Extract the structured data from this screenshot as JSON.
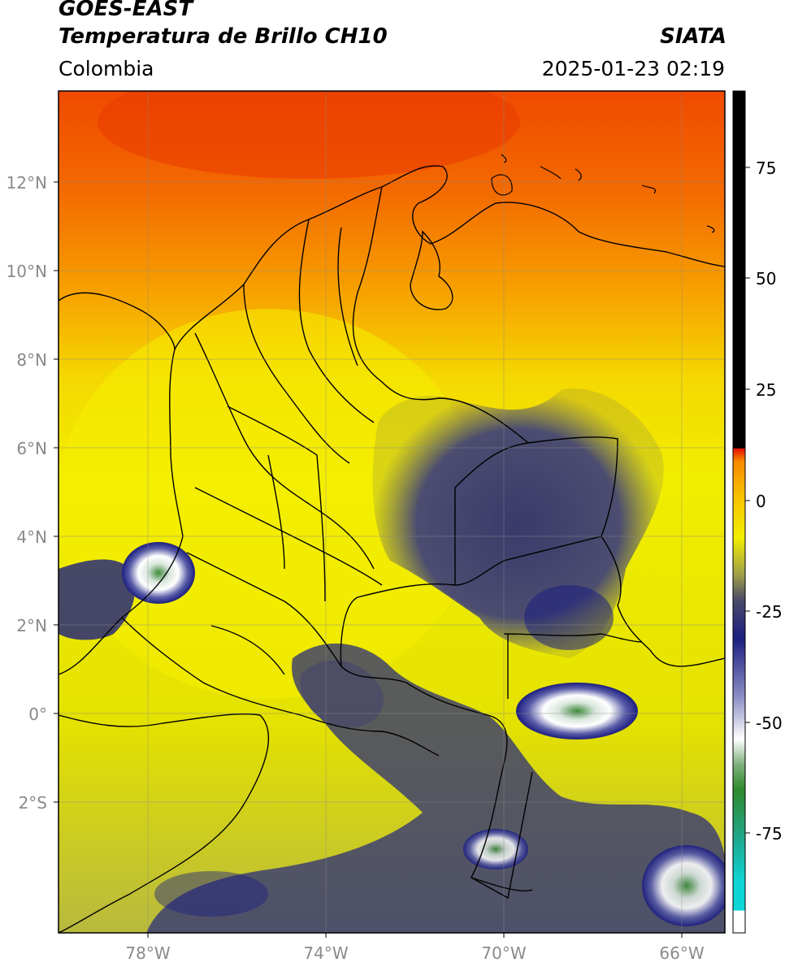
{
  "header": {
    "satellite": "GOES-EAST",
    "product": "Temperatura de Brillo CH10",
    "organization": "SIATA",
    "region": "Colombia",
    "datetime": "2025-01-23 02:19"
  },
  "map": {
    "lon_ticks": [
      "78°W",
      "74°W",
      "70°W",
      "66°W"
    ],
    "lat_ticks": [
      "12°N",
      "10°N",
      "8°N",
      "6°N",
      "4°N",
      "2°N",
      "0°",
      "2°S"
    ]
  },
  "colorbar": {
    "ticks": [
      "75",
      "50",
      "25",
      "0",
      "-25",
      "-50",
      "-75"
    ],
    "colors": {
      "black": "#000000",
      "red": "#e51400",
      "orange": "#f78a00",
      "yellow": "#f2ee00",
      "olive": "#c2c53a",
      "darkgray": "#4a4a68",
      "navy": "#1c1e80",
      "white": "#ffffff",
      "green": "#2f8a2c",
      "teal": "#1ea890",
      "cyan": "#0ed6d6"
    }
  }
}
